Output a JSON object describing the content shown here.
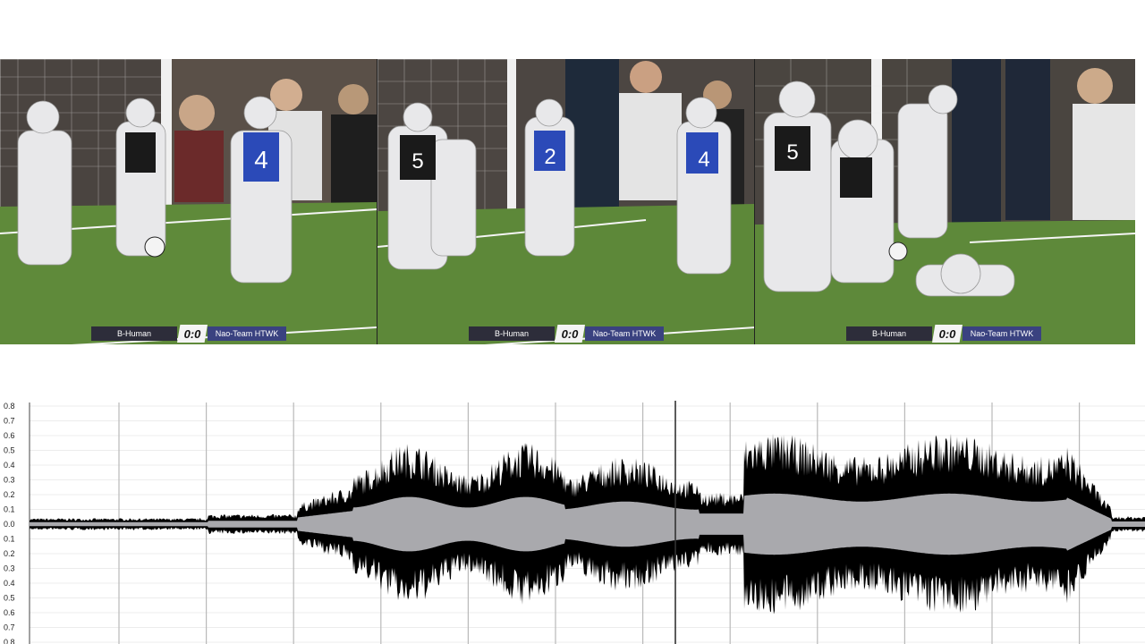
{
  "match": {
    "team_home": "B-Human",
    "score": "0:0",
    "team_away": "Nao-Team HTWK"
  },
  "frames": [
    {
      "jerseys": [
        "4"
      ]
    },
    {
      "jerseys": [
        "5",
        "2",
        "4"
      ]
    },
    {
      "jerseys": [
        "5"
      ]
    }
  ],
  "waveform": {
    "y_ticks": [
      "0.8",
      "0.7",
      "0.6",
      "0.5",
      "0.4",
      "0.3",
      "0.2",
      "0.1",
      "0.0",
      "0.1",
      "0.2",
      "0.3",
      "0.4",
      "0.5",
      "0.6",
      "0.7",
      "0.8"
    ],
    "colors": {
      "envelope": "#000000",
      "rms": "#a9a9ad",
      "grid": "#b9b9b9",
      "cursor": "#333333"
    }
  }
}
